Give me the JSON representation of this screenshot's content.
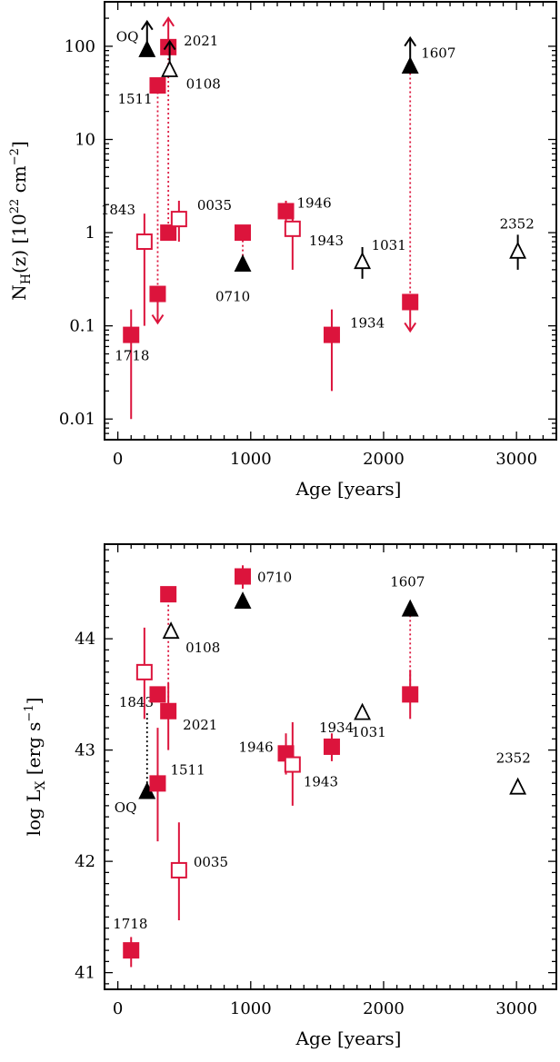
{
  "colors": {
    "red": "#dc143c",
    "black": "#000000",
    "frame": "#000000"
  },
  "chart_data": [
    {
      "type": "scatter",
      "xlabel": "Age [years]",
      "ylabel": "N_H(z) [10^22 cm^-2]",
      "ylabel_parts": {
        "main": "N",
        "sub": "H",
        "mid": "(z) [10",
        "sup": "22",
        "unit": " cm",
        "unit_sup": "−2",
        "close": "]"
      },
      "xlim": [
        -100,
        3300
      ],
      "ylim": [
        0.006,
        300
      ],
      "yscale": "log",
      "xticks": [
        0,
        1000,
        2000,
        3000
      ],
      "xtick_labels": [
        "0",
        "1000",
        "2000",
        "3000"
      ],
      "yticks": [
        0.01,
        0.1,
        1,
        10,
        100
      ],
      "ytick_labels": [
        "0.01",
        "0.1",
        "1",
        "10",
        "100"
      ],
      "points": [
        {
          "label": "1718",
          "x": 100,
          "y": 0.08,
          "err": [
            0.01,
            0.15
          ],
          "marker": "square",
          "filled": true,
          "color": "red"
        },
        {
          "label": "1511",
          "x": 300,
          "y": 38,
          "marker": "square",
          "filled": true,
          "color": "red"
        },
        {
          "label": "",
          "x": 300,
          "y": 0.22,
          "marker": "square",
          "filled": true,
          "color": "red",
          "arrow": "down"
        },
        {
          "label": "2021",
          "x": 380,
          "y": 98,
          "marker": "square",
          "filled": true,
          "color": "red",
          "arrow": "up"
        },
        {
          "label": "",
          "x": 380,
          "y": 1.0,
          "marker": "square",
          "filled": true,
          "color": "red"
        },
        {
          "label": "1843",
          "x": 200,
          "y": 0.8,
          "err": [
            0.1,
            1.6
          ],
          "marker": "square",
          "filled": false,
          "color": "red"
        },
        {
          "label": "0035",
          "x": 460,
          "y": 1.4,
          "err": [
            0.8,
            2.2
          ],
          "marker": "square",
          "filled": false,
          "color": "red"
        },
        {
          "label": "OQ",
          "x": 220,
          "y": 90,
          "marker": "triangle",
          "filled": true,
          "color": "black",
          "arrow": "up"
        },
        {
          "label": "0108",
          "x": 390,
          "y": 55,
          "marker": "triangle",
          "filled": false,
          "color": "black",
          "arrow": "up"
        },
        {
          "label": "",
          "x": 940,
          "y": 1.0,
          "marker": "square",
          "filled": true,
          "color": "red"
        },
        {
          "label": "0710",
          "x": 940,
          "y": 0.45,
          "marker": "triangle",
          "filled": true,
          "color": "black"
        },
        {
          "label": "1946",
          "x": 1265,
          "y": 1.7,
          "err": [
            1.3,
            2.2
          ],
          "marker": "square",
          "filled": true,
          "color": "red"
        },
        {
          "label": "1943",
          "x": 1315,
          "y": 1.1,
          "err": [
            0.4,
            1.6
          ],
          "marker": "square",
          "filled": false,
          "color": "red"
        },
        {
          "label": "1934",
          "x": 1610,
          "y": 0.08,
          "err": [
            0.02,
            0.15
          ],
          "marker": "square",
          "filled": true,
          "color": "red"
        },
        {
          "label": "1031",
          "x": 1840,
          "y": 0.48,
          "err": [
            0.32,
            0.7
          ],
          "marker": "triangle",
          "filled": false,
          "color": "black"
        },
        {
          "label": "1607",
          "x": 2200,
          "y": 60,
          "marker": "triangle",
          "filled": true,
          "color": "black",
          "arrow": "up"
        },
        {
          "label": "",
          "x": 2200,
          "y": 0.18,
          "marker": "square",
          "filled": true,
          "color": "red",
          "arrow": "down"
        },
        {
          "label": "2352",
          "x": 3010,
          "y": 0.62,
          "err": [
            0.4,
            0.95
          ],
          "marker": "triangle",
          "filled": false,
          "color": "black"
        }
      ],
      "links": [
        {
          "x": 300,
          "y": [
            0.22,
            38
          ],
          "color": "red"
        },
        {
          "x": 380,
          "y": [
            1.0,
            98
          ],
          "color": "red"
        },
        {
          "x": 940,
          "y": [
            0.45,
            1.0
          ],
          "color": "red"
        },
        {
          "x": 2200,
          "y": [
            0.18,
            60
          ],
          "color": "red"
        }
      ]
    },
    {
      "type": "scatter",
      "xlabel": "Age [years]",
      "ylabel": "log L_X [erg s^-1]",
      "ylabel_parts": {
        "main": "log  L",
        "sub": "X",
        "mid": "  [erg s",
        "sup": "−1",
        "close": "]"
      },
      "xlim": [
        -100,
        3300
      ],
      "ylim": [
        40.85,
        44.85
      ],
      "yscale": "linear",
      "xticks": [
        0,
        1000,
        2000,
        3000
      ],
      "xtick_labels": [
        "0",
        "1000",
        "2000",
        "3000"
      ],
      "yticks": [
        41,
        42,
        43,
        44
      ],
      "ytick_labels": [
        "41",
        "42",
        "43",
        "44"
      ],
      "points": [
        {
          "label": "1718",
          "x": 100,
          "y": 41.2,
          "err": [
            41.05,
            41.32
          ],
          "marker": "square",
          "filled": true,
          "color": "red"
        },
        {
          "label": "1843",
          "x": 200,
          "y": 43.7,
          "err": [
            43.28,
            44.1
          ],
          "marker": "square",
          "filled": false,
          "color": "red"
        },
        {
          "label": "OQ",
          "x": 220,
          "y": 42.62,
          "marker": "triangle",
          "filled": true,
          "color": "black"
        },
        {
          "label": "",
          "x": 300,
          "y": 43.5,
          "marker": "square",
          "filled": true,
          "color": "red"
        },
        {
          "label": "1511",
          "x": 300,
          "y": 42.7,
          "err": [
            42.18,
            43.2
          ],
          "marker": "square",
          "filled": true,
          "color": "red"
        },
        {
          "label": "2021",
          "x": 380,
          "y": 43.35,
          "err": [
            43.0,
            43.6
          ],
          "marker": "square",
          "filled": true,
          "color": "red"
        },
        {
          "label": "",
          "x": 380,
          "y": 44.4,
          "marker": "square",
          "filled": true,
          "color": "red"
        },
        {
          "label": "0108",
          "x": 400,
          "y": 44.06,
          "marker": "triangle",
          "filled": false,
          "color": "black"
        },
        {
          "label": "0035",
          "x": 460,
          "y": 41.92,
          "err": [
            41.47,
            42.35
          ],
          "marker": "square",
          "filled": false,
          "color": "red"
        },
        {
          "label": "0710",
          "x": 940,
          "y": 44.56,
          "err": [
            44.45,
            44.66
          ],
          "marker": "square",
          "filled": true,
          "color": "red"
        },
        {
          "label": "",
          "x": 940,
          "y": 44.33,
          "marker": "triangle",
          "filled": true,
          "color": "black"
        },
        {
          "label": "1946",
          "x": 1265,
          "y": 42.97,
          "err": [
            42.78,
            43.15
          ],
          "marker": "square",
          "filled": true,
          "color": "red"
        },
        {
          "label": "1943",
          "x": 1315,
          "y": 42.87,
          "err": [
            42.5,
            43.25
          ],
          "marker": "square",
          "filled": false,
          "color": "red"
        },
        {
          "label": "1934",
          "x": 1610,
          "y": 43.03,
          "err": [
            42.9,
            43.15
          ],
          "marker": "square",
          "filled": true,
          "color": "red"
        },
        {
          "label": "1031",
          "x": 1840,
          "y": 43.33,
          "marker": "triangle",
          "filled": false,
          "color": "black"
        },
        {
          "label": "1607",
          "x": 2200,
          "y": 44.26,
          "marker": "triangle",
          "filled": true,
          "color": "black"
        },
        {
          "label": "",
          "x": 2200,
          "y": 43.5,
          "err": [
            43.28,
            43.72
          ],
          "marker": "square",
          "filled": true,
          "color": "red"
        },
        {
          "label": "2352",
          "x": 3010,
          "y": 42.66,
          "marker": "triangle",
          "filled": false,
          "color": "black"
        }
      ],
      "links": [
        {
          "x": 220,
          "y": [
            42.62,
            43.35
          ],
          "color": "black"
        },
        {
          "x": 380,
          "y": [
            43.35,
            44.4
          ],
          "color": "red"
        },
        {
          "x": 2200,
          "y": [
            43.5,
            44.26
          ],
          "color": "red"
        }
      ]
    }
  ]
}
